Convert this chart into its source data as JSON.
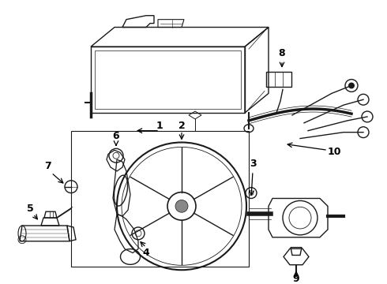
{
  "bg_color": "#ffffff",
  "line_color": "#1a1a1a",
  "figsize": [
    4.9,
    3.6
  ],
  "dpi": 100,
  "label_fontsize": 9
}
